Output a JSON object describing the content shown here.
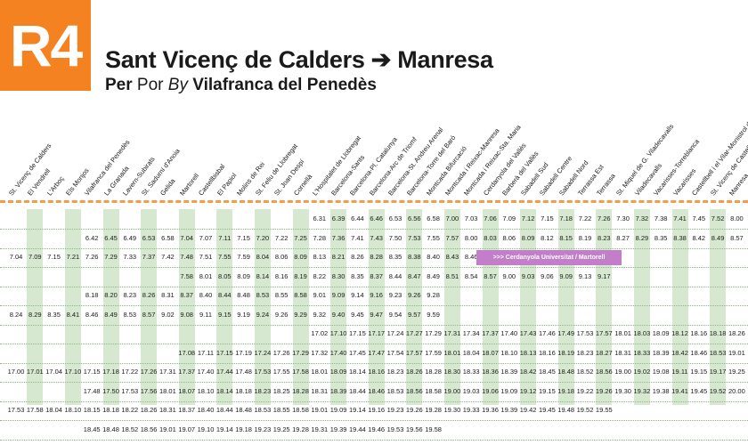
{
  "header": {
    "line": "R4",
    "origin": "Sant Vicenç de Calders",
    "arrow": "➔",
    "destination": "Manresa",
    "via_label_per": "Per",
    "via_label_por": "Por",
    "via_label_by": "By",
    "via_station": "Vilafranca del Penedès"
  },
  "stations": [
    "St. Vicenç de Calders",
    "El Vendrell",
    "L'Arboç",
    "Els Monjos",
    "Vilafranca del Penedès",
    "La Granada",
    "Lavern-Subirats",
    "St. Sadurní d'Anoia",
    "Gelida",
    "Martorell",
    "Castellbisbal",
    "El Papiol",
    "Molins de Rei",
    "St. Feliu de Llobregat",
    "St. Joan Despí",
    "Cornellà",
    "L'Hospitalet de Llobregat",
    "Barcelona-Sants",
    "Barcelona-Pl. Catalunya",
    "Barcelona-Arc de Triomf",
    "Barcelona-St. Andreu Arenal",
    "Barcelona-Torre del Baró",
    "Montcada Bifurcació",
    "Montcada i Reixac-Manresa",
    "Montcada i Reixac-Sta. Maria",
    "Cerdanyola del Vallès",
    "Barberà del Vallès",
    "Sabadell Sud",
    "Sabadell Centre",
    "Sabadell Nord",
    "Terrassa Est",
    "Terrassa",
    "St. Miquel de G. Viladecavalls",
    "Viladecavalls",
    "Vacarisses-Torreblanca",
    "Vacarisses",
    "Castellbell i el Vilar-Monistrol de Montserrat",
    "St. Vicenç de Castellet",
    "Manresa"
  ],
  "rows": [
    {
      "start": 16,
      "times": [
        "6.31",
        "6.39",
        "6.44",
        "6.46",
        "6.53",
        "6.56",
        "6.58",
        "7.00",
        "7.03",
        "7.06",
        "7.09",
        "7.12",
        "7.15",
        "7.18",
        "7.22",
        "7.26",
        "7.30",
        "7.32",
        "7.38",
        "7.41",
        "7.45",
        "7.52",
        "8.00"
      ]
    },
    {
      "start": 4,
      "times": [
        "6.42",
        "6.45",
        "6.49",
        "6.53",
        "6.58",
        "7.04",
        "7.07",
        "7.11",
        "7.15",
        "7.20",
        "7.22",
        "7.25",
        "7.28",
        "7.36",
        "7.41",
        "7.43",
        "7.50",
        "7.53",
        "7.55",
        "7.57",
        "8.00",
        "8.03",
        "8.06",
        "8.09",
        "8.12",
        "8.15",
        "8.19",
        "8.23",
        "8.27",
        "8.29",
        "8.35",
        "8.38",
        "8.42",
        "8.49",
        "8.57"
      ]
    },
    {
      "start": 0,
      "times": [
        "7.04",
        "7.09",
        "7.15",
        "7.21",
        "7.26",
        "7.29",
        "7.33",
        "7.37",
        "7.42",
        "7.48",
        "7.51",
        "7.55",
        "7.59",
        "8.04",
        "8.06",
        "8.09",
        "8.13",
        "8.21",
        "8.26",
        "8.28",
        "8.35",
        "8.38",
        "8.40",
        "8.43",
        "8.46",
        "8.50"
      ],
      "note": ">>> Cerdanyola Universitat / Martorell"
    },
    {
      "start": 9,
      "times": [
        "7.58",
        "8.01",
        "8.05",
        "8.09",
        "8.14",
        "8.16",
        "8.19",
        "8.22",
        "8.30",
        "8.35",
        "8.37",
        "8.44",
        "8.47",
        "8.49",
        "8.51",
        "8.54",
        "8.57",
        "9.00",
        "9.03",
        "9.06",
        "9.09",
        "9.13",
        "9.17"
      ]
    },
    {
      "start": 4,
      "times": [
        "8.18",
        "8.20",
        "8.23",
        "8.26",
        "8.31",
        "8.37",
        "8.40",
        "8.44",
        "8.48",
        "8.53",
        "8.55",
        "8.58",
        "9.01",
        "9.09",
        "9.14",
        "9.16",
        "9.23",
        "9.26",
        "9.28"
      ]
    },
    {
      "start": 0,
      "times": [
        "8.24",
        "8.29",
        "8.35",
        "8.41",
        "8.46",
        "8.49",
        "8.53",
        "8.57",
        "9.02",
        "9.08",
        "9.11",
        "9.15",
        "9.19",
        "9.24",
        "9.26",
        "9.29",
        "9.32",
        "9.40",
        "9.45",
        "9.47",
        "9.54",
        "9.57",
        "9.59"
      ]
    },
    {
      "start": 16,
      "times": [
        "17.02",
        "17.10",
        "17.15",
        "17.17",
        "17.24",
        "17.27",
        "17.29",
        "17.31",
        "17.34",
        "17.37",
        "17.40",
        "17.43",
        "17.46",
        "17.49",
        "17.53",
        "17.57",
        "18.01",
        "18.03",
        "18.09",
        "18.12",
        "18.16",
        "18.18",
        "18.26"
      ]
    },
    {
      "start": 9,
      "times": [
        "17.08",
        "17.11",
        "17.15",
        "17.19",
        "17.24",
        "17.26",
        "17.29",
        "17.32",
        "17.40",
        "17.45",
        "17.47",
        "17.54",
        "17.57",
        "17.59",
        "18.01",
        "18.04",
        "18.07",
        "18.10",
        "18.13",
        "18.16",
        "18.19",
        "18.23",
        "18.27",
        "18.31",
        "18.33",
        "18.39",
        "18.42",
        "18.46",
        "18.53",
        "19.01"
      ]
    },
    {
      "start": 0,
      "times": [
        "17.00",
        "17.01",
        "17.04",
        "17.10",
        "17.15",
        "17.18",
        "17.22",
        "17.26",
        "17.31",
        "17.37",
        "17.40",
        "17.44",
        "17.48",
        "17.53",
        "17.55",
        "17.58",
        "18.01",
        "18.09",
        "18.14",
        "18.16",
        "18.23",
        "18.26",
        "18.28",
        "18.30",
        "18.33",
        "18.36",
        "18.39",
        "18.42",
        "18.45",
        "18.48",
        "18.52",
        "18.56",
        "19.00",
        "19.02",
        "19.08",
        "19.11",
        "19.15",
        "19.17",
        "19.25"
      ]
    },
    {
      "start": 4,
      "times": [
        "17.48",
        "17.50",
        "17.53",
        "17.56",
        "18.01",
        "18.07",
        "18.10",
        "18.14",
        "18.18",
        "18.23",
        "18.25",
        "18.28",
        "18.31",
        "18.39",
        "18.44",
        "18.46",
        "18.53",
        "18.56",
        "18.58",
        "19.00",
        "19.03",
        "19.06",
        "19.09",
        "19.12",
        "19.15",
        "19.18",
        "19.22",
        "19.26",
        "19.30",
        "19.32",
        "19.38",
        "19.41",
        "19.45",
        "19.52",
        "20.00"
      ]
    },
    {
      "start": 0,
      "times": [
        "17.53",
        "17.58",
        "18.04",
        "18.10",
        "18.15",
        "18.18",
        "18.22",
        "18.26",
        "18.31",
        "18.37",
        "18.40",
        "18.44",
        "18.48",
        "18.53",
        "18.55",
        "18.58",
        "19.01",
        "19.09",
        "19.14",
        "19.16",
        "19.23",
        "19.26",
        "19.28",
        "19.30",
        "19.33",
        "19.36",
        "19.39",
        "19.42",
        "19.45",
        "19.48",
        "19.52",
        "19.55"
      ]
    },
    {
      "start": 4,
      "times": [
        "18.45",
        "18.48",
        "18.52",
        "18.56",
        "19.01",
        "19.07",
        "19.10",
        "19.14",
        "19.18",
        "19.23",
        "19.25",
        "19.28",
        "19.31",
        "19.39",
        "19.44",
        "19.46",
        "19.53",
        "19.56",
        "19.58"
      ]
    }
  ],
  "colors": {
    "brand_orange": "#f58220",
    "column_green": "#d6e8cf",
    "note_purple": "#c37ec9"
  }
}
